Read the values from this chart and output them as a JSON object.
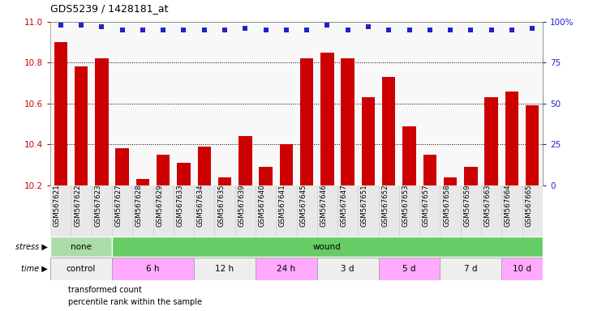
{
  "title": "GDS5239 / 1428181_at",
  "samples": [
    "GSM567621",
    "GSM567622",
    "GSM567623",
    "GSM567627",
    "GSM567628",
    "GSM567629",
    "GSM567633",
    "GSM567634",
    "GSM567635",
    "GSM567639",
    "GSM567640",
    "GSM567641",
    "GSM567645",
    "GSM567646",
    "GSM567647",
    "GSM567651",
    "GSM567652",
    "GSM567653",
    "GSM567657",
    "GSM567658",
    "GSM567659",
    "GSM567663",
    "GSM567664",
    "GSM567665"
  ],
  "transformed_count": [
    10.9,
    10.78,
    10.82,
    10.38,
    10.23,
    10.35,
    10.31,
    10.39,
    10.24,
    10.44,
    10.29,
    10.4,
    10.82,
    10.85,
    10.82,
    10.63,
    10.73,
    10.49,
    10.35,
    10.24,
    10.29,
    10.63,
    10.66,
    10.59
  ],
  "percentile_rank": [
    98,
    98,
    97,
    95,
    95,
    95,
    95,
    95,
    95,
    96,
    95,
    95,
    95,
    98,
    95,
    97,
    95,
    95,
    95,
    95,
    95,
    95,
    95,
    96
  ],
  "bar_color": "#cc0000",
  "dot_color": "#2222cc",
  "ylim_left": [
    10.2,
    11.0
  ],
  "ylim_right": [
    0,
    100
  ],
  "yticks_left": [
    10.2,
    10.4,
    10.6,
    10.8,
    11.0
  ],
  "yticks_right": [
    0,
    25,
    50,
    75,
    100
  ],
  "ytick_labels_right": [
    "0",
    "25",
    "50",
    "75",
    "100%"
  ],
  "stress_groups": [
    {
      "label": "none",
      "start": 0,
      "end": 3,
      "color": "#aaddaa"
    },
    {
      "label": "wound",
      "start": 3,
      "end": 24,
      "color": "#66cc66"
    }
  ],
  "time_groups": [
    {
      "label": "control",
      "start": 0,
      "end": 3,
      "color": "#eeeeee"
    },
    {
      "label": "6 h",
      "start": 3,
      "end": 7,
      "color": "#ffaaff"
    },
    {
      "label": "12 h",
      "start": 7,
      "end": 10,
      "color": "#eeeeee"
    },
    {
      "label": "24 h",
      "start": 10,
      "end": 13,
      "color": "#ffaaff"
    },
    {
      "label": "3 d",
      "start": 13,
      "end": 16,
      "color": "#eeeeee"
    },
    {
      "label": "5 d",
      "start": 16,
      "end": 19,
      "color": "#ffaaff"
    },
    {
      "label": "7 d",
      "start": 19,
      "end": 22,
      "color": "#eeeeee"
    },
    {
      "label": "10 d",
      "start": 22,
      "end": 24,
      "color": "#ffaaff"
    }
  ],
  "legend_items": [
    {
      "label": "transformed count",
      "color": "#cc0000"
    },
    {
      "label": "percentile rank within the sample",
      "color": "#2222cc"
    }
  ],
  "axis_label_color": "#cc0000",
  "right_axis_color": "#2222cc",
  "fig_bg": "#ffffff",
  "plot_bg": "#f8f8f8"
}
